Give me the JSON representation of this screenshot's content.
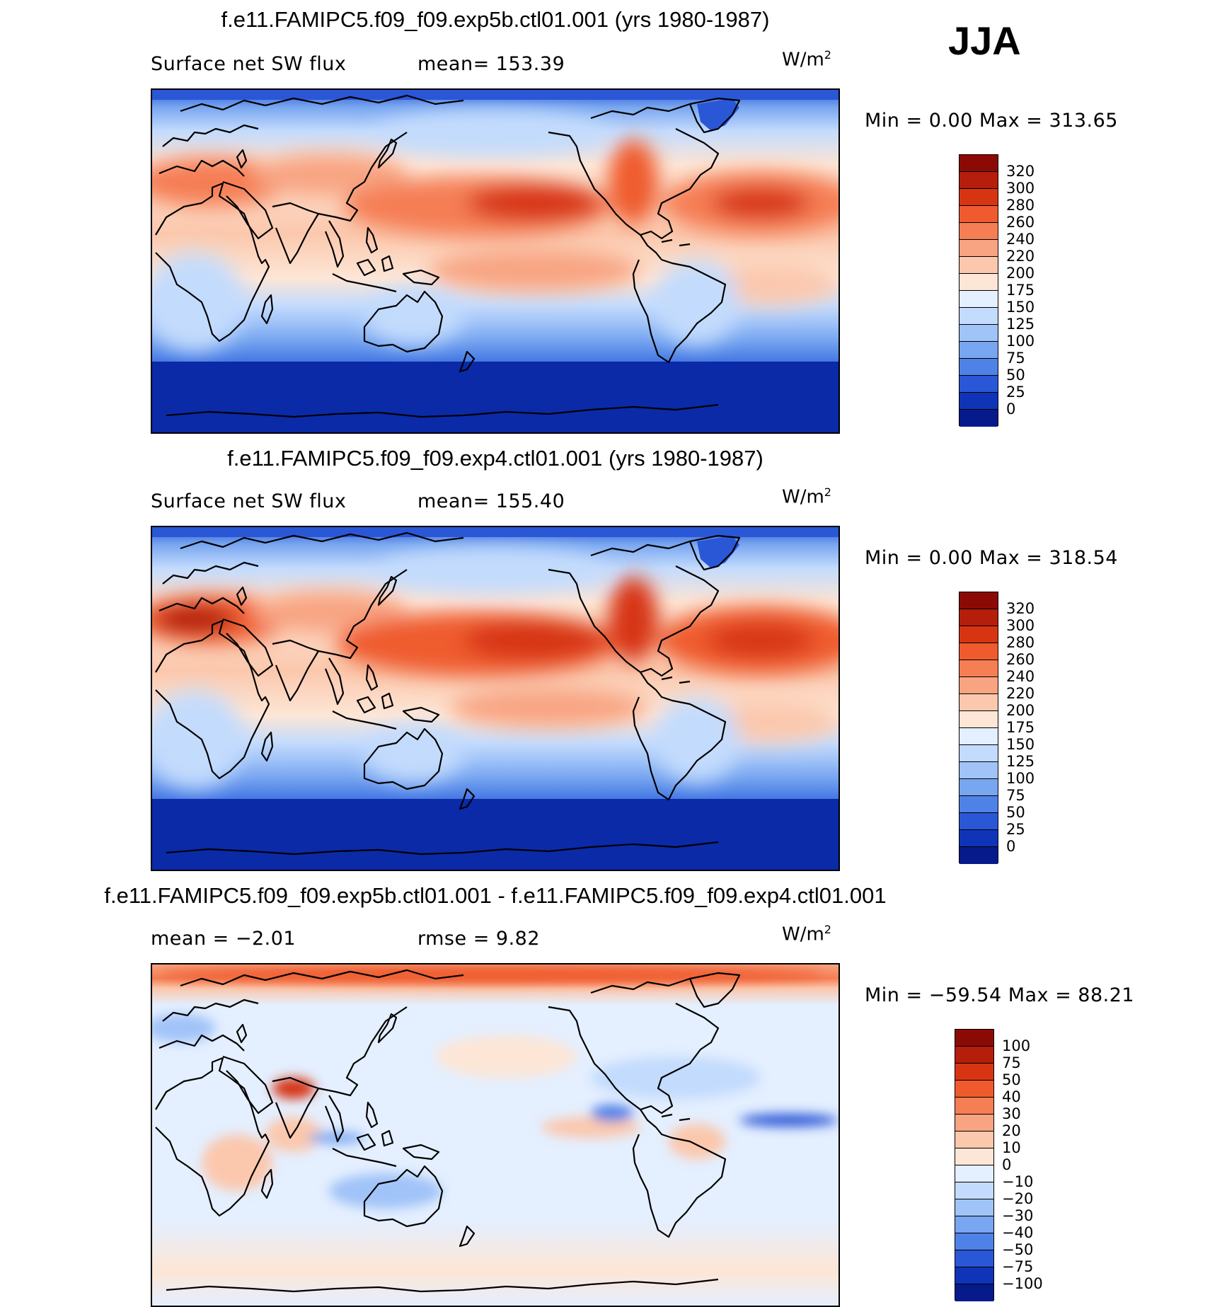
{
  "season": "JJA",
  "panels": [
    {
      "title": "f.e11.FAMIPC5.f09_f09.exp5b.ctl01.001 (yrs 1980-1987)",
      "left_label": "Surface net SW flux",
      "mid_label": "mean=  153.39",
      "units_base": "W/m",
      "units_exp": "2",
      "minmax": "Min  =     0.00  Max  =  313.65"
    },
    {
      "title": "f.e11.FAMIPC5.f09_f09.exp4.ctl01.001 (yrs 1980-1987)",
      "left_label": "Surface net SW flux",
      "mid_label": "mean=  155.40",
      "units_base": "W/m",
      "units_exp": "2",
      "minmax": "Min  =     0.00  Max  =  318.54"
    },
    {
      "title": "f.e11.FAMIPC5.f09_f09.exp5b.ctl01.001 - f.e11.FAMIPC5.f09_f09.exp4.ctl01.001",
      "left_label": "mean  =   −2.01",
      "mid_label": "rmse  =     9.82",
      "units_base": "W/m",
      "units_exp": "2",
      "minmax": "Min  = −59.54  Max  =    88.21"
    }
  ],
  "colorbars": {
    "absolute": {
      "labels": [
        "320",
        "300",
        "280",
        "260",
        "240",
        "220",
        "200",
        "175",
        "150",
        "125",
        "100",
        "75",
        "50",
        "25",
        "0"
      ],
      "colors": [
        "#8c0a06",
        "#b41e0a",
        "#d73512",
        "#ef5b2e",
        "#f57e55",
        "#f8a482",
        "#fbc8ad",
        "#fde6d6",
        "#e4efff",
        "#c3dbfd",
        "#a0c3f8",
        "#78a6f0",
        "#4f82e6",
        "#2a57d6",
        "#0f34b8",
        "#061a8c"
      ]
    },
    "difference": {
      "labels": [
        "100",
        "75",
        "50",
        "40",
        "30",
        "20",
        "10",
        "0",
        "−10",
        "−20",
        "−30",
        "−40",
        "−50",
        "−75",
        "−100"
      ],
      "colors": [
        "#8c0a06",
        "#b41e0a",
        "#d73512",
        "#ef5b2e",
        "#f57e55",
        "#f8a482",
        "#fbc8ad",
        "#fde6d6",
        "#e4efff",
        "#c3dbfd",
        "#a0c3f8",
        "#78a6f0",
        "#4f82e6",
        "#2a57d6",
        "#0f34b8",
        "#061a8c"
      ]
    }
  }
}
